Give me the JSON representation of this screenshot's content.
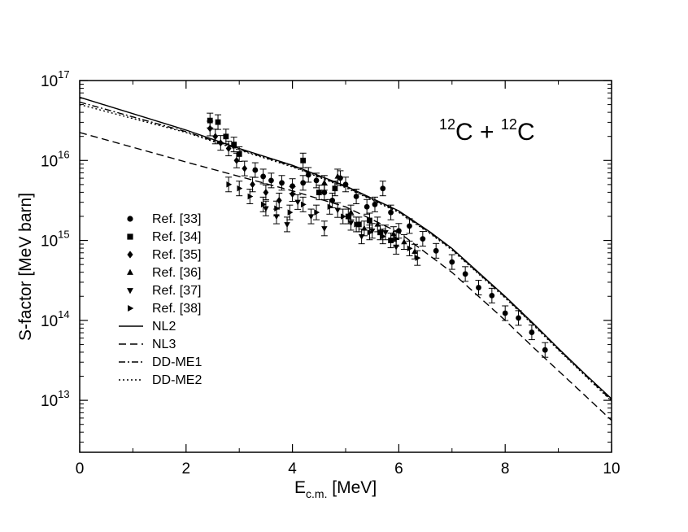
{
  "chart_data": {
    "type": "scatter",
    "title": "",
    "annotation": {
      "mass1": "12",
      "elem1": "C",
      "plus": " + ",
      "mass2": "12",
      "elem2": "C"
    },
    "xlabel": {
      "main": "E",
      "sub": "c.m.",
      "unit": " [MeV]"
    },
    "ylabel": "S-factor [MeV barn]",
    "xlim": [
      0,
      10
    ],
    "ylim_log10": [
      12.35,
      17
    ],
    "xticks": [
      0,
      2,
      4,
      6,
      8,
      10
    ],
    "xtick_labels": [
      "0",
      "2",
      "4",
      "6",
      "8",
      "10"
    ],
    "yticks": [
      {
        "exp": 13,
        "base": "10",
        "sup": "13"
      },
      {
        "exp": 14,
        "base": "10",
        "sup": "14"
      },
      {
        "exp": 15,
        "base": "10",
        "sup": "15"
      },
      {
        "exp": 16,
        "base": "10",
        "sup": "16"
      },
      {
        "exp": 17,
        "base": "10",
        "sup": "17"
      }
    ],
    "series": [
      {
        "name": "Ref. [33]",
        "marker": "circle",
        "points": [
          [
            3.3,
            15.88
          ],
          [
            3.45,
            15.8
          ],
          [
            3.6,
            15.75
          ],
          [
            3.8,
            15.72
          ],
          [
            4.0,
            15.68
          ],
          [
            4.2,
            15.72
          ],
          [
            4.3,
            15.82
          ],
          [
            4.45,
            15.75
          ],
          [
            4.6,
            15.6
          ],
          [
            4.75,
            15.5
          ],
          [
            4.9,
            15.78
          ],
          [
            5.0,
            15.7
          ],
          [
            5.2,
            15.55
          ],
          [
            5.4,
            15.42
          ],
          [
            5.55,
            15.45
          ],
          [
            5.7,
            15.65
          ],
          [
            5.85,
            15.35
          ],
          [
            6.0,
            15.12
          ],
          [
            6.2,
            15.18
          ],
          [
            6.45,
            15.02
          ],
          [
            6.7,
            14.87
          ],
          [
            7.0,
            14.73
          ],
          [
            7.25,
            14.58
          ],
          [
            7.5,
            14.41
          ],
          [
            7.75,
            14.31
          ],
          [
            8.0,
            14.09
          ],
          [
            8.25,
            14.03
          ],
          [
            8.5,
            13.85
          ],
          [
            8.75,
            13.63
          ]
        ]
      },
      {
        "name": "Ref. [34]",
        "marker": "square",
        "points": [
          [
            2.45,
            16.5
          ],
          [
            2.6,
            16.48
          ],
          [
            2.75,
            16.3
          ],
          [
            2.9,
            16.2
          ],
          [
            3.0,
            16.08
          ],
          [
            4.2,
            16.0
          ],
          [
            4.5,
            15.6
          ],
          [
            4.8,
            15.65
          ],
          [
            5.05,
            15.3
          ],
          [
            5.25,
            15.2
          ],
          [
            5.45,
            15.25
          ],
          [
            5.65,
            15.1
          ],
          [
            5.85,
            15.0
          ]
        ]
      },
      {
        "name": "Ref. [35]",
        "marker": "diamond",
        "points": [
          [
            2.45,
            16.4
          ],
          [
            2.55,
            16.3
          ],
          [
            2.65,
            16.22
          ],
          [
            2.8,
            16.15
          ],
          [
            2.95,
            16.0
          ],
          [
            3.1,
            15.9
          ],
          [
            3.25,
            15.7
          ],
          [
            3.5,
            15.6
          ],
          [
            3.75,
            15.5
          ],
          [
            4.0,
            15.58
          ]
        ]
      },
      {
        "name": "Ref. [36]",
        "marker": "triangle-up",
        "points": [
          [
            4.6,
            15.72
          ],
          [
            4.85,
            15.8
          ],
          [
            5.1,
            15.35
          ],
          [
            5.35,
            15.15
          ],
          [
            5.6,
            15.2
          ],
          [
            5.9,
            15.08
          ],
          [
            6.1,
            14.98
          ],
          [
            6.3,
            14.86
          ]
        ]
      },
      {
        "name": "Ref. [37]",
        "marker": "triangle-down",
        "points": [
          [
            3.5,
            15.4
          ],
          [
            3.7,
            15.3
          ],
          [
            3.9,
            15.2
          ],
          [
            4.1,
            15.48
          ],
          [
            4.35,
            15.3
          ],
          [
            4.6,
            15.15
          ],
          [
            4.85,
            15.38
          ],
          [
            5.1,
            15.22
          ],
          [
            5.3,
            15.05
          ],
          [
            5.5,
            15.12
          ],
          [
            5.75,
            15.1
          ],
          [
            5.95,
            14.92
          ]
        ]
      },
      {
        "name": "Ref. [38]",
        "marker": "triangle-right",
        "points": [
          [
            2.8,
            15.7
          ],
          [
            3.0,
            15.65
          ],
          [
            3.2,
            15.55
          ],
          [
            3.45,
            15.45
          ],
          [
            3.7,
            15.4
          ],
          [
            3.95,
            15.35
          ],
          [
            4.2,
            15.45
          ],
          [
            4.45,
            15.35
          ],
          [
            4.7,
            15.42
          ],
          [
            4.95,
            15.3
          ],
          [
            5.2,
            15.2
          ],
          [
            5.45,
            15.1
          ],
          [
            5.7,
            15.05
          ],
          [
            5.95,
            15.02
          ],
          [
            6.2,
            14.9
          ],
          [
            6.35,
            14.78
          ]
        ]
      },
      {
        "name": "NL2",
        "line": "solid",
        "points": [
          [
            0,
            16.79
          ],
          [
            2,
            16.38
          ],
          [
            3,
            16.15
          ],
          [
            4,
            15.94
          ],
          [
            5,
            15.68
          ],
          [
            6,
            15.37
          ],
          [
            6.6,
            15.1
          ],
          [
            7,
            14.9
          ],
          [
            7.5,
            14.6
          ],
          [
            8,
            14.3
          ],
          [
            8.5,
            13.98
          ],
          [
            9,
            13.65
          ],
          [
            9.5,
            13.33
          ],
          [
            10,
            13.02
          ]
        ]
      },
      {
        "name": "NL3",
        "line": "dashed",
        "points": [
          [
            0,
            16.35
          ],
          [
            2,
            15.98
          ],
          [
            3,
            15.8
          ],
          [
            4,
            15.62
          ],
          [
            5,
            15.42
          ],
          [
            6,
            15.1
          ],
          [
            6.6,
            14.8
          ],
          [
            7,
            14.6
          ],
          [
            7.5,
            14.3
          ],
          [
            8,
            14.0
          ],
          [
            8.5,
            13.68
          ],
          [
            9,
            13.37
          ],
          [
            9.5,
            13.06
          ],
          [
            10,
            12.75
          ]
        ]
      },
      {
        "name": "DD-ME1",
        "line": "dashdot",
        "points": [
          [
            0,
            16.73
          ],
          [
            2,
            16.36
          ],
          [
            3,
            16.14
          ],
          [
            4,
            15.93
          ],
          [
            5,
            15.67
          ],
          [
            6,
            15.36
          ],
          [
            6.6,
            15.09
          ],
          [
            7,
            14.89
          ],
          [
            7.5,
            14.59
          ],
          [
            8,
            14.29
          ],
          [
            8.5,
            13.97
          ],
          [
            9,
            13.64
          ],
          [
            9.5,
            13.32
          ],
          [
            10,
            13.0
          ]
        ]
      },
      {
        "name": "DD-ME2",
        "line": "dotted",
        "points": [
          [
            0,
            16.7
          ],
          [
            2,
            16.35
          ],
          [
            3,
            16.13
          ],
          [
            4,
            15.92
          ],
          [
            5,
            15.66
          ],
          [
            6,
            15.35
          ],
          [
            6.6,
            15.08
          ],
          [
            7,
            14.88
          ],
          [
            7.5,
            14.58
          ],
          [
            8,
            14.28
          ],
          [
            8.5,
            13.96
          ],
          [
            9,
            13.63
          ],
          [
            9.5,
            13.31
          ],
          [
            10,
            12.99
          ]
        ]
      }
    ],
    "legend_position": "left-middle"
  }
}
